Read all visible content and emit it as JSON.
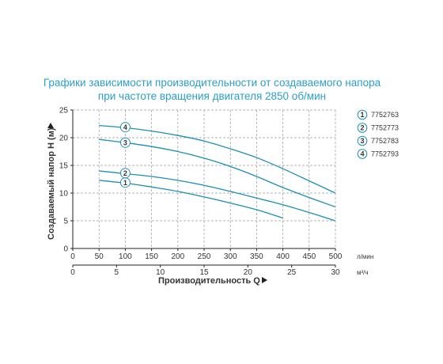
{
  "chart_data": {
    "type": "line",
    "title": [
      "Графики зависимости производительности от создаваемого напора",
      "при частоте вращения двигателя 2850 об/мин"
    ],
    "xlabel": "Производительность Q",
    "ylabel": "Создаваемый напор H (м)",
    "x_unit": "л/мин",
    "x2_unit": "м³/ч",
    "xlim": [
      0,
      500
    ],
    "ylim": [
      0,
      25
    ],
    "x_ticks": [
      "0",
      "50",
      "100",
      "150",
      "200",
      "250",
      "300",
      "350",
      "400",
      "450",
      "500"
    ],
    "x2_ticks": [
      "0",
      "5",
      "10",
      "15",
      "20",
      "25",
      "30"
    ],
    "y_ticks": [
      "0",
      "5",
      "10",
      "15",
      "20",
      "25"
    ],
    "grid": true,
    "legend_position": "right",
    "series": [
      {
        "marker": "1",
        "name": "7752763",
        "x": [
          50,
          100,
          150,
          200,
          250,
          300,
          350,
          400
        ],
        "y": [
          12.3,
          11.8,
          11.1,
          10.3,
          9.3,
          8.2,
          7.0,
          5.5
        ]
      },
      {
        "marker": "2",
        "name": "7752773",
        "x": [
          50,
          100,
          150,
          200,
          250,
          300,
          350,
          400,
          450,
          500
        ],
        "y": [
          14.0,
          13.5,
          13.0,
          12.3,
          11.4,
          10.3,
          9.1,
          7.9,
          6.5,
          5.0
        ]
      },
      {
        "marker": "3",
        "name": "7752783",
        "x": [
          50,
          100,
          150,
          200,
          250,
          300,
          350,
          400,
          450,
          500
        ],
        "y": [
          19.7,
          19.1,
          18.4,
          17.5,
          16.3,
          14.8,
          13.0,
          11.0,
          9.2,
          7.5
        ]
      },
      {
        "marker": "4",
        "name": "7752793",
        "x": [
          50,
          100,
          150,
          200,
          250,
          300,
          350,
          400,
          450,
          500
        ],
        "y": [
          22.2,
          21.8,
          21.2,
          20.4,
          19.4,
          18.0,
          16.4,
          14.4,
          12.2,
          10.0
        ]
      }
    ],
    "series_marker_positions": [
      {
        "marker": "1",
        "x": 100,
        "y": 11.9
      },
      {
        "marker": "2",
        "x": 100,
        "y": 13.6
      },
      {
        "marker": "3",
        "x": 100,
        "y": 19.1
      },
      {
        "marker": "4",
        "x": 100,
        "y": 21.9
      }
    ]
  },
  "colors": {
    "title": "#2a9fc9",
    "curve": "#1b8fb5",
    "grid": "#9a9a9a",
    "axis": "#222222",
    "text": "#333333"
  }
}
